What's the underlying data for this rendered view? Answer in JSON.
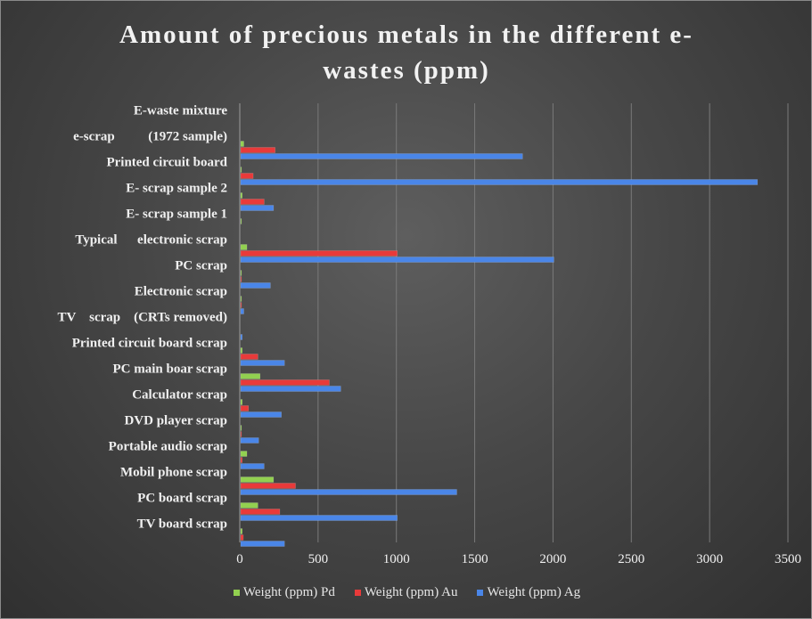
{
  "chart_data": {
    "type": "bar",
    "orientation": "horizontal",
    "title": "Amount of precious metals in the different e-wastes (ppm)",
    "title_lines": [
      "Amount of precious metals in the different e-",
      "wastes (ppm)"
    ],
    "categories": [
      "E-waste mixture",
      "e-scrap          (1972 sample)",
      "Printed circuit board",
      "E- scrap sample 2",
      "E- scrap sample 1",
      "Typical      electronic scrap",
      "PC scrap",
      "Electronic scrap",
      "TV    scrap    (CRTs removed)",
      "Printed circuit board scrap",
      "PC main boar scrap",
      "Calculator scrap",
      "DVD player scrap",
      "Portable audio scrap",
      "Mobil phone scrap",
      "PC board scrap",
      "TV board scrap"
    ],
    "series": [
      {
        "name": "Weight (ppm) Pd",
        "color": "#92d050",
        "values": [
          0,
          20,
          5,
          10,
          5,
          40,
          5,
          5,
          0,
          10,
          124,
          10,
          5,
          40,
          210,
          110,
          10
        ]
      },
      {
        "name": "Weight (ppm) Au",
        "color": "#e83a3a",
        "values": [
          0,
          220,
          80,
          150,
          0,
          1000,
          5,
          5,
          0,
          110,
          566,
          50,
          5,
          10,
          350,
          250,
          17
        ]
      },
      {
        "name": "Weight (ppm) Ag",
        "color": "#4a86e8",
        "values": [
          0,
          1800,
          3300,
          210,
          0,
          2000,
          190,
          20,
          10,
          280,
          639,
          260,
          115,
          150,
          1380,
          1000,
          280
        ]
      }
    ],
    "xlim": [
      0,
      3500
    ],
    "xticks": [
      "0",
      "500",
      "1000",
      "1500",
      "2000",
      "2500",
      "3000",
      "3500"
    ],
    "xtick_values": [
      0,
      500,
      1000,
      1500,
      2000,
      2500,
      3000,
      3500
    ],
    "grid": true,
    "legend_position": "bottom"
  },
  "colors": {
    "text": "#f0f0f0",
    "grid": "#7a7a7a",
    "background": "#474747"
  }
}
